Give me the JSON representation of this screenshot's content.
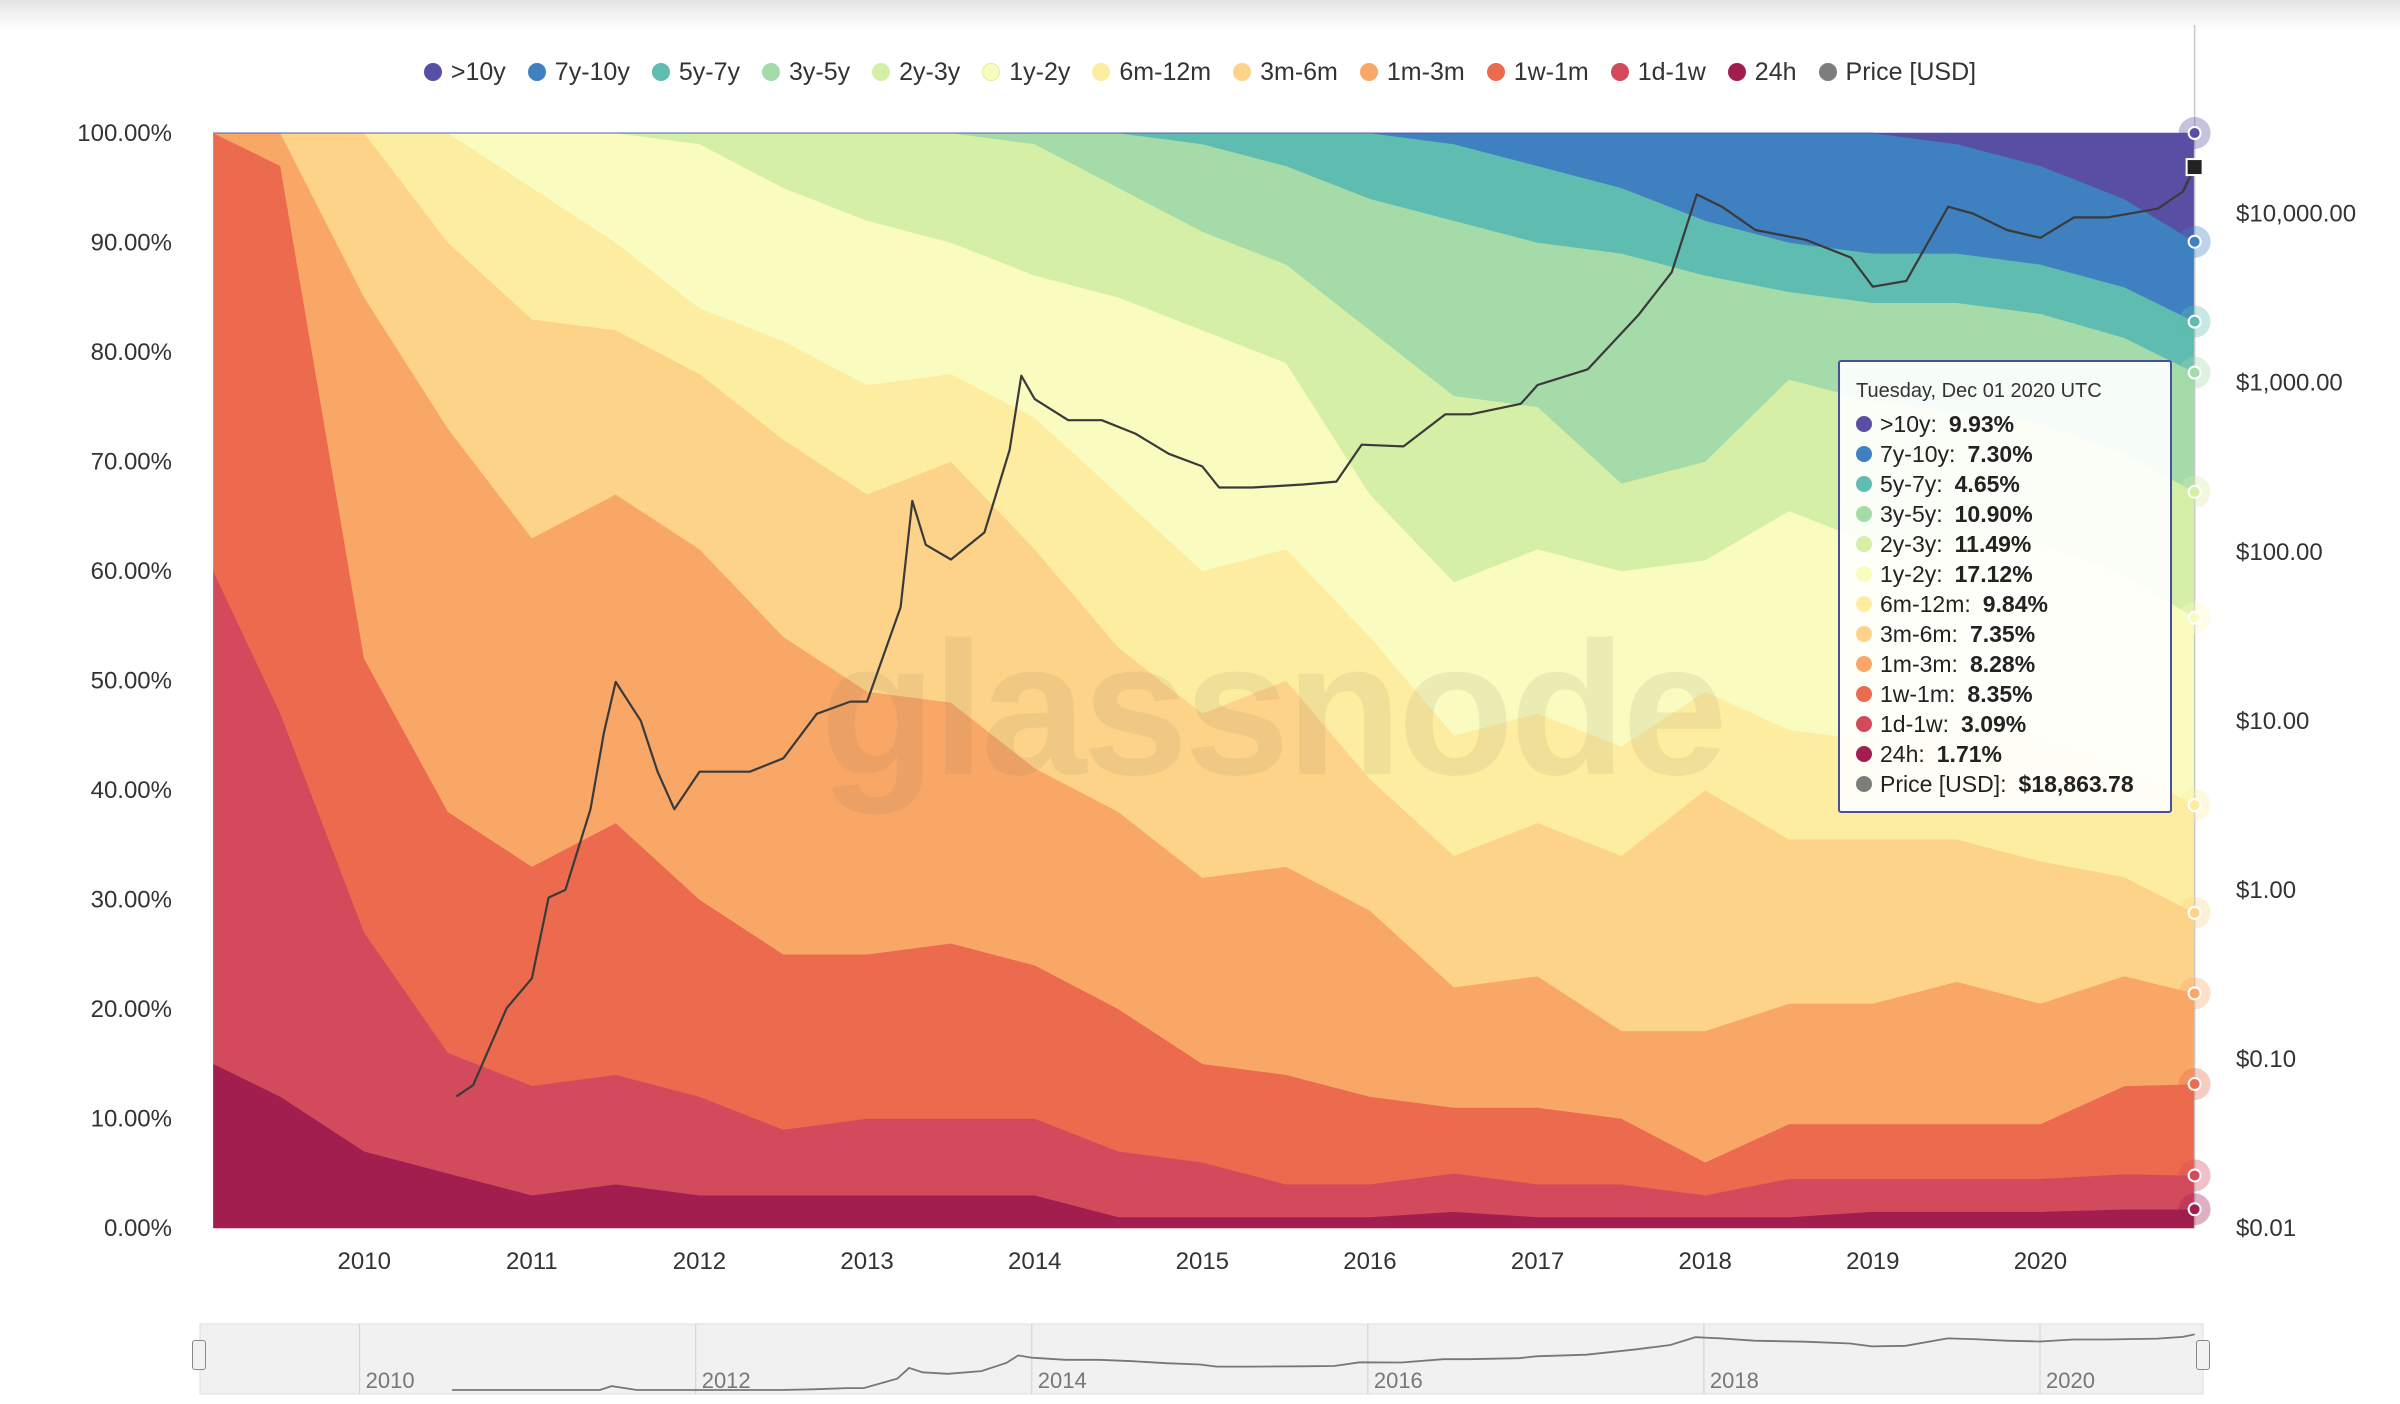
{
  "chart_data": {
    "type": "area",
    "stacking": "percent",
    "title": "",
    "x_ticks": [
      "2010",
      "2011",
      "2012",
      "2013",
      "2014",
      "2015",
      "2016",
      "2017",
      "2018",
      "2019",
      "2020"
    ],
    "y_left_ticks": [
      "100.00%",
      "90.00%",
      "80.00%",
      "70.00%",
      "60.00%",
      "50.00%",
      "40.00%",
      "30.00%",
      "20.00%",
      "10.00%",
      "0.00%"
    ],
    "y_left_range": [
      0,
      100
    ],
    "y_right_ticks": [
      "$10,000.00",
      "$1,000.00",
      "$100.00",
      "$10.00",
      "$1.00",
      "$0.10",
      "$0.01"
    ],
    "y_right_scale": "log",
    "y_right_range": [
      0.01,
      30000
    ],
    "x_range": [
      2009.05,
      2020.97
    ],
    "legend_position": "top-center",
    "watermark": "glassnode",
    "navigator_ticks": [
      "2010",
      "2012",
      "2014",
      "2016",
      "2018",
      "2020"
    ],
    "series": [
      {
        "name": ">10y",
        "color": "#584fa4"
      },
      {
        "name": "7y-10y",
        "color": "#3f80c0"
      },
      {
        "name": "5y-7y",
        "color": "#5fbcb0"
      },
      {
        "name": "3y-5y",
        "color": "#a4dba9"
      },
      {
        "name": "2y-3y",
        "color": "#d5efa6"
      },
      {
        "name": "1y-2y",
        "color": "#f9fbbf"
      },
      {
        "name": "6m-12m",
        "color": "#fdeda0"
      },
      {
        "name": "3m-6m",
        "color": "#fdd38a"
      },
      {
        "name": "1m-3m",
        "color": "#f9a767"
      },
      {
        "name": "1w-1m",
        "color": "#ec6a4d"
      },
      {
        "name": "1d-1w",
        "color": "#d34a5c"
      },
      {
        "name": "24h",
        "color": "#a11e4f"
      },
      {
        "name": "Price [USD]",
        "color": "#7d7d7d"
      }
    ],
    "shares_pct": {
      "x": [
        2009.1,
        2009.5,
        2010.0,
        2010.5,
        2011.0,
        2011.5,
        2012.0,
        2012.5,
        2013.0,
        2013.5,
        2014.0,
        2014.5,
        2015.0,
        2015.5,
        2016.0,
        2016.5,
        2017.0,
        2017.5,
        2018.0,
        2018.5,
        2019.0,
        2019.5,
        2020.0,
        2020.5,
        2020.92
      ],
      ">10y": [
        0,
        0,
        0,
        0,
        0,
        0,
        0,
        0,
        0,
        0,
        0,
        0,
        0,
        0,
        0,
        0,
        0,
        0,
        0,
        0,
        0,
        1,
        3,
        6,
        9.93
      ],
      "7y-10y": [
        0,
        0,
        0,
        0,
        0,
        0,
        0,
        0,
        0,
        0,
        0,
        0,
        0,
        0,
        0,
        1,
        3,
        5,
        8,
        10,
        11,
        10,
        9,
        8,
        7.3
      ],
      "5y-7y": [
        0,
        0,
        0,
        0,
        0,
        0,
        0,
        0,
        0,
        0,
        0,
        0,
        1,
        3,
        6,
        7,
        7,
        6,
        5,
        4.5,
        4.5,
        4.5,
        4.5,
        4.6,
        4.65
      ],
      "3y-5y": [
        0,
        0,
        0,
        0,
        0,
        0,
        0,
        0,
        0,
        0,
        1,
        5,
        8,
        9,
        12,
        16,
        15,
        21,
        17,
        8,
        9,
        10,
        10,
        10.5,
        10.9
      ],
      "2y-3y": [
        0,
        0,
        0,
        0,
        0,
        0,
        1,
        5,
        8,
        10,
        12,
        10,
        9,
        9,
        15,
        17,
        13,
        8,
        9,
        12,
        13,
        12,
        11,
        11,
        11.49
      ],
      "1y-2y": [
        0,
        0,
        0,
        0,
        5,
        10,
        15,
        14,
        15,
        12,
        13,
        18,
        22,
        17,
        13,
        14,
        15,
        16,
        12,
        20,
        18,
        16,
        18,
        17.5,
        17.12
      ],
      "6m-12m": [
        0,
        0,
        0,
        10,
        12,
        8,
        6,
        9,
        10,
        8,
        12,
        14,
        13,
        12,
        13,
        11,
        10,
        10,
        9,
        10,
        9,
        11,
        11,
        10,
        9.84
      ],
      "3m-6m": [
        0,
        0,
        15,
        17,
        20,
        15,
        16,
        18,
        18,
        22,
        20,
        15,
        15,
        17,
        12,
        12,
        14,
        16,
        22,
        15,
        15,
        13,
        13,
        9,
        7.35
      ],
      "1m-3m": [
        0,
        3,
        33,
        35,
        30,
        30,
        32,
        29,
        24,
        22,
        18,
        18,
        17,
        19,
        17,
        11,
        12,
        8,
        12,
        11,
        11,
        13,
        11,
        10,
        8.28
      ],
      "1w-1m": [
        40,
        50,
        25,
        22,
        20,
        23,
        18,
        16,
        15,
        16,
        14,
        13,
        9,
        10,
        8,
        6,
        7,
        6,
        3,
        5,
        5,
        5,
        5,
        8,
        8.35
      ],
      "1d-1w": [
        45,
        35,
        20,
        11,
        10,
        10,
        9,
        6,
        7,
        7,
        7,
        6,
        5,
        3,
        3,
        3.5,
        3,
        3,
        2,
        3.5,
        3,
        3,
        3,
        3.2,
        3.09
      ],
      "24h": [
        15,
        12,
        7,
        5,
        3,
        4,
        3,
        3,
        3,
        3,
        3,
        1,
        1,
        1,
        1,
        1.5,
        1,
        1,
        1,
        1,
        1.5,
        1.5,
        1.5,
        1.7,
        1.71
      ]
    },
    "price_usd": {
      "x": [
        2010.55,
        2010.65,
        2010.85,
        2011.0,
        2011.1,
        2011.2,
        2011.35,
        2011.43,
        2011.5,
        2011.65,
        2011.75,
        2011.85,
        2012.0,
        2012.3,
        2012.5,
        2012.7,
        2012.9,
        2013.0,
        2013.2,
        2013.27,
        2013.35,
        2013.5,
        2013.7,
        2013.85,
        2013.92,
        2014.0,
        2014.2,
        2014.4,
        2014.6,
        2014.8,
        2015.0,
        2015.1,
        2015.3,
        2015.6,
        2015.8,
        2015.95,
        2016.2,
        2016.45,
        2016.6,
        2016.9,
        2017.0,
        2017.3,
        2017.6,
        2017.8,
        2017.95,
        2018.1,
        2018.3,
        2018.6,
        2018.87,
        2019.0,
        2019.2,
        2019.45,
        2019.6,
        2019.8,
        2020.0,
        2020.2,
        2020.4,
        2020.7,
        2020.85,
        2020.92
      ],
      "y": [
        0.06,
        0.07,
        0.2,
        0.3,
        0.9,
        1.0,
        3.0,
        8.5,
        17,
        10,
        5,
        3,
        5,
        5,
        6,
        11,
        13,
        13,
        47,
        200,
        110,
        90,
        130,
        400,
        1100,
        800,
        600,
        600,
        500,
        380,
        320,
        240,
        240,
        250,
        260,
        430,
        420,
        650,
        650,
        750,
        970,
        1200,
        2500,
        4500,
        13000,
        11000,
        8000,
        7000,
        5500,
        3700,
        4000,
        11000,
        10000,
        8000,
        7200,
        9500,
        9500,
        10700,
        13500,
        18863.78
      ]
    }
  },
  "tooltip": {
    "date": "Tuesday, Dec 01 2020 UTC",
    "rows": [
      {
        "label": ">10y",
        "value": "9.93%"
      },
      {
        "label": "7y-10y",
        "value": "7.30%"
      },
      {
        "label": "5y-7y",
        "value": "4.65%"
      },
      {
        "label": "3y-5y",
        "value": "10.90%"
      },
      {
        "label": "2y-3y",
        "value": "11.49%"
      },
      {
        "label": "1y-2y",
        "value": "17.12%"
      },
      {
        "label": "6m-12m",
        "value": "9.84%"
      },
      {
        "label": "3m-6m",
        "value": "7.35%"
      },
      {
        "label": "1m-3m",
        "value": "8.28%"
      },
      {
        "label": "1w-1m",
        "value": "8.35%"
      },
      {
        "label": "1d-1w",
        "value": "3.09%"
      },
      {
        "label": "24h",
        "value": "1.71%"
      },
      {
        "label": "Price [USD]",
        "value": "$18,863.78"
      }
    ]
  }
}
